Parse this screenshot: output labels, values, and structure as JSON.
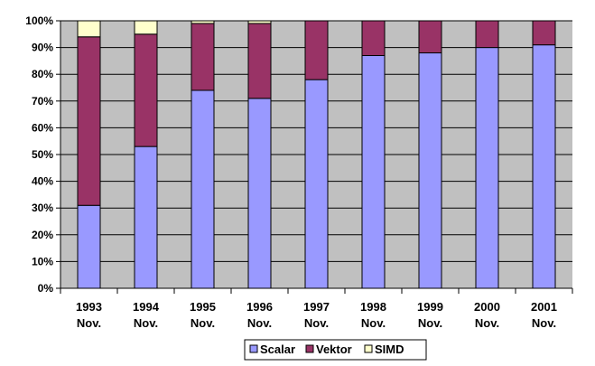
{
  "chart_data": {
    "type": "bar",
    "stacked": true,
    "percent_stacked": true,
    "categories": [
      [
        "1993",
        "Nov."
      ],
      [
        "1994",
        "Nov."
      ],
      [
        "1995",
        "Nov."
      ],
      [
        "1996",
        "Nov."
      ],
      [
        "1997",
        "Nov."
      ],
      [
        "1998",
        "Nov."
      ],
      [
        "1999",
        "Nov."
      ],
      [
        "2000",
        "Nov."
      ],
      [
        "2001",
        "Nov."
      ]
    ],
    "series": [
      {
        "name": "Scalar",
        "color": "#9999ff",
        "values": [
          31,
          53,
          74,
          71,
          78,
          87,
          88,
          90,
          91
        ]
      },
      {
        "name": "Vektor",
        "color": "#993366",
        "values": [
          63,
          42,
          25,
          28,
          22,
          13,
          12,
          10,
          9
        ]
      },
      {
        "name": "SIMD",
        "color": "#ffffcc",
        "values": [
          6,
          5,
          1,
          1,
          0,
          0,
          0,
          0,
          0
        ]
      }
    ],
    "ylim": [
      0,
      100
    ],
    "yticks": [
      "0%",
      "10%",
      "20%",
      "30%",
      "40%",
      "50%",
      "60%",
      "70%",
      "80%",
      "90%",
      "100%"
    ],
    "plot_background": "#c0c0c0",
    "grid": true,
    "legend_position": "bottom"
  }
}
